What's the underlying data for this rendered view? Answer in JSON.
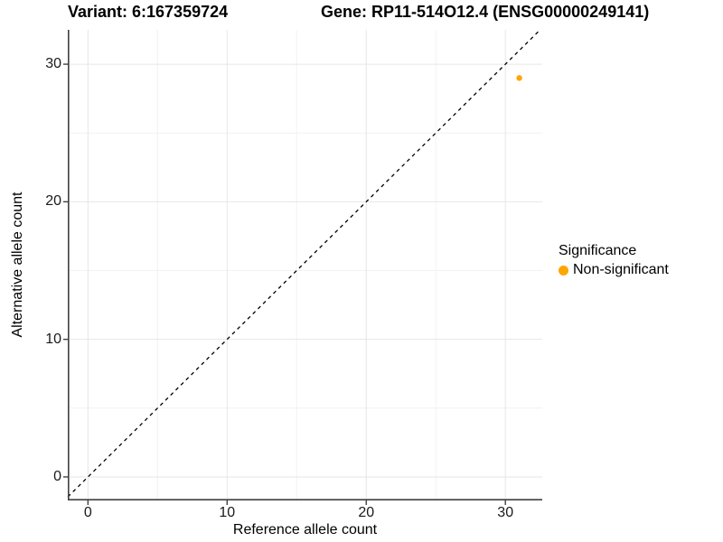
{
  "titles": {
    "variant": "Variant: 6:167359724",
    "gene": "Gene: RP11-514O12.4 (ENSG00000249141)"
  },
  "chart_data": {
    "type": "scatter",
    "title": "Variant: 6:167359724 — Gene: RP11-514O12.4 (ENSG00000249141)",
    "xlabel": "Reference allele count",
    "ylabel": "Alternative allele count",
    "xlim": [
      -1.45,
      32.65
    ],
    "ylim": [
      -1.71,
      32.5
    ],
    "xticks": [
      0,
      10,
      20,
      30
    ],
    "yticks": [
      0,
      10,
      20,
      30
    ],
    "minor_xticks": [
      5,
      15,
      25
    ],
    "minor_yticks": [
      5,
      15,
      25
    ],
    "grid": true,
    "identity_line": {
      "type": "y=x",
      "style": "dashed",
      "color": "#000000"
    },
    "points": [
      {
        "x": 31,
        "y": 29,
        "series": "Non-significant",
        "color": "#FFA500"
      }
    ],
    "legend": {
      "title": "Significance",
      "position": "right",
      "items": [
        {
          "label": "Non-significant",
          "color": "#FFA500"
        }
      ]
    }
  },
  "colors": {
    "point": "#FFA500",
    "axis": "#404040",
    "tick_label": "#1a1a1a",
    "grid_major": "#E6E6E6",
    "grid_minor": "#F2F2F2",
    "identity_line": "#000000",
    "background": "#FFFFFF"
  }
}
